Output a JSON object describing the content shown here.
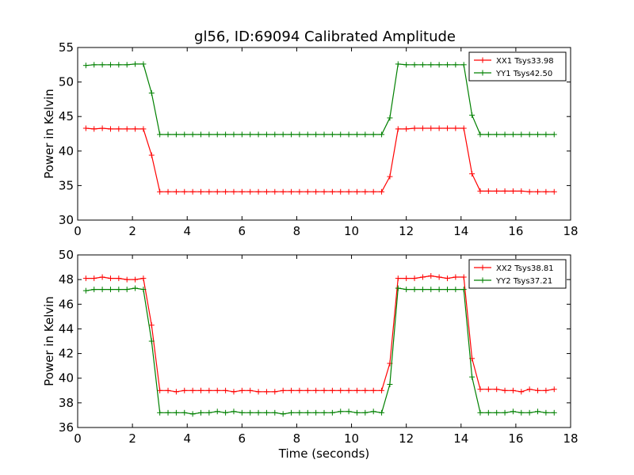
{
  "figure": {
    "title": "gl56, ID:69094 Calibrated Amplitude"
  },
  "chart_data": [
    {
      "type": "line",
      "title": "gl56, ID:69094 Calibrated Amplitude",
      "xlabel": "",
      "ylabel": "Power in Kelvin",
      "xlim": [
        0,
        18
      ],
      "ylim": [
        30,
        55
      ],
      "xticks": [
        0,
        2,
        4,
        6,
        8,
        10,
        12,
        14,
        16,
        18
      ],
      "yticks": [
        30,
        35,
        40,
        45,
        50,
        55
      ],
      "grid": false,
      "legend": "top-right",
      "x": [
        0.3,
        0.6,
        0.9,
        1.2,
        1.5,
        1.8,
        2.1,
        2.4,
        2.7,
        3.0,
        3.3,
        3.6,
        3.9,
        4.2,
        4.5,
        4.8,
        5.1,
        5.4,
        5.7,
        6.0,
        6.3,
        6.6,
        6.9,
        7.2,
        7.5,
        7.8,
        8.1,
        8.4,
        8.7,
        9.0,
        9.3,
        9.6,
        9.9,
        10.2,
        10.5,
        10.8,
        11.1,
        11.4,
        11.7,
        12.0,
        12.3,
        12.6,
        12.9,
        13.2,
        13.5,
        13.8,
        14.1,
        14.4,
        14.7,
        15.0,
        15.3,
        15.6,
        15.9,
        16.2,
        16.5,
        16.8,
        17.1,
        17.4
      ],
      "series": [
        {
          "name": "XX1 Tsys33.98",
          "color": "#ff0000",
          "values": [
            43.3,
            43.2,
            43.3,
            43.2,
            43.2,
            43.2,
            43.2,
            43.2,
            39.4,
            34.1,
            34.1,
            34.1,
            34.1,
            34.1,
            34.1,
            34.1,
            34.1,
            34.1,
            34.1,
            34.1,
            34.1,
            34.1,
            34.1,
            34.1,
            34.1,
            34.1,
            34.1,
            34.1,
            34.1,
            34.1,
            34.1,
            34.1,
            34.1,
            34.1,
            34.1,
            34.1,
            34.1,
            36.3,
            43.2,
            43.2,
            43.3,
            43.3,
            43.3,
            43.3,
            43.3,
            43.3,
            43.3,
            36.7,
            34.2,
            34.2,
            34.2,
            34.2,
            34.2,
            34.2,
            34.1,
            34.1,
            34.1,
            34.1
          ]
        },
        {
          "name": "YY1 Tsys42.50",
          "color": "#008000",
          "values": [
            52.4,
            52.5,
            52.5,
            52.5,
            52.5,
            52.5,
            52.6,
            52.6,
            48.4,
            42.4,
            42.4,
            42.4,
            42.4,
            42.4,
            42.4,
            42.4,
            42.4,
            42.4,
            42.4,
            42.4,
            42.4,
            42.4,
            42.4,
            42.4,
            42.4,
            42.4,
            42.4,
            42.4,
            42.4,
            42.4,
            42.4,
            42.4,
            42.4,
            42.4,
            42.4,
            42.4,
            42.4,
            44.8,
            52.6,
            52.5,
            52.5,
            52.5,
            52.5,
            52.5,
            52.5,
            52.5,
            52.5,
            45.2,
            42.4,
            42.4,
            42.4,
            42.4,
            42.4,
            42.4,
            42.4,
            42.4,
            42.4,
            42.4
          ]
        }
      ]
    },
    {
      "type": "line",
      "title": "",
      "xlabel": "Time (seconds)",
      "ylabel": "Power in Kelvin",
      "xlim": [
        0,
        18
      ],
      "ylim": [
        36,
        50
      ],
      "xticks": [
        0,
        2,
        4,
        6,
        8,
        10,
        12,
        14,
        16,
        18
      ],
      "yticks": [
        36,
        38,
        40,
        42,
        44,
        46,
        48,
        50
      ],
      "grid": false,
      "legend": "top-right",
      "x": [
        0.3,
        0.6,
        0.9,
        1.2,
        1.5,
        1.8,
        2.1,
        2.4,
        2.7,
        3.0,
        3.3,
        3.6,
        3.9,
        4.2,
        4.5,
        4.8,
        5.1,
        5.4,
        5.7,
        6.0,
        6.3,
        6.6,
        6.9,
        7.2,
        7.5,
        7.8,
        8.1,
        8.4,
        8.7,
        9.0,
        9.3,
        9.6,
        9.9,
        10.2,
        10.5,
        10.8,
        11.1,
        11.4,
        11.7,
        12.0,
        12.3,
        12.6,
        12.9,
        13.2,
        13.5,
        13.8,
        14.1,
        14.4,
        14.7,
        15.0,
        15.3,
        15.6,
        15.9,
        16.2,
        16.5,
        16.8,
        17.1,
        17.4
      ],
      "series": [
        {
          "name": "XX2 Tsys38.81",
          "color": "#ff0000",
          "values": [
            48.1,
            48.1,
            48.2,
            48.1,
            48.1,
            48.0,
            48.0,
            48.1,
            44.3,
            39.0,
            39.0,
            38.9,
            39.0,
            39.0,
            39.0,
            39.0,
            39.0,
            39.0,
            38.9,
            39.0,
            39.0,
            38.9,
            38.9,
            38.9,
            39.0,
            39.0,
            39.0,
            39.0,
            39.0,
            39.0,
            39.0,
            39.0,
            39.0,
            39.0,
            39.0,
            39.0,
            39.0,
            41.2,
            48.1,
            48.1,
            48.1,
            48.2,
            48.3,
            48.2,
            48.1,
            48.2,
            48.2,
            41.6,
            39.1,
            39.1,
            39.1,
            39.0,
            39.0,
            38.9,
            39.1,
            39.0,
            39.0,
            39.1
          ]
        },
        {
          "name": "YY2 Tsys37.21",
          "color": "#008000",
          "values": [
            47.1,
            47.2,
            47.2,
            47.2,
            47.2,
            47.2,
            47.3,
            47.2,
            43.0,
            37.2,
            37.2,
            37.2,
            37.2,
            37.1,
            37.2,
            37.2,
            37.3,
            37.2,
            37.3,
            37.2,
            37.2,
            37.2,
            37.2,
            37.2,
            37.1,
            37.2,
            37.2,
            37.2,
            37.2,
            37.2,
            37.2,
            37.3,
            37.3,
            37.2,
            37.2,
            37.3,
            37.2,
            39.5,
            47.3,
            47.2,
            47.2,
            47.2,
            47.2,
            47.2,
            47.2,
            47.2,
            47.2,
            40.1,
            37.2,
            37.2,
            37.2,
            37.2,
            37.3,
            37.2,
            37.2,
            37.3,
            37.2,
            37.2
          ]
        }
      ]
    }
  ]
}
